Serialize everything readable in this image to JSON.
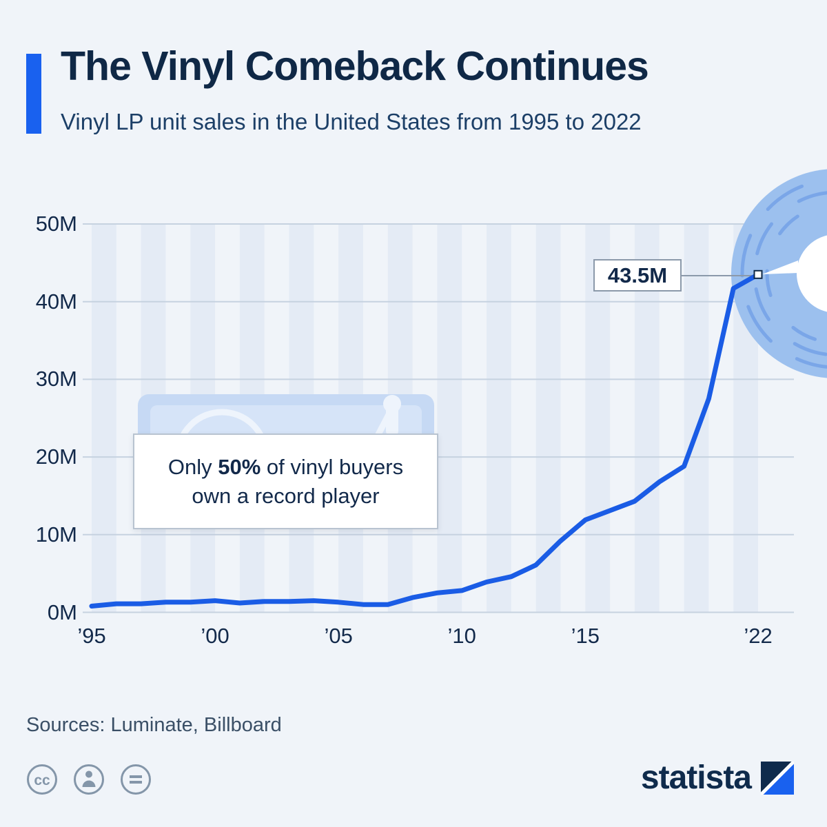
{
  "header": {
    "title": "The Vinyl Comeback Continues",
    "subtitle": "Vinyl LP unit sales in the United States from 1995 to 2022"
  },
  "chart_data": {
    "type": "line",
    "title": "Vinyl LP unit sales in the United States from 1995 to 2022",
    "series_name": "Vinyl LP unit sales (million units)",
    "x": [
      1995,
      1996,
      1997,
      1998,
      1999,
      2000,
      2001,
      2002,
      2003,
      2004,
      2005,
      2006,
      2007,
      2008,
      2009,
      2010,
      2011,
      2012,
      2013,
      2014,
      2015,
      2016,
      2017,
      2018,
      2019,
      2020,
      2021,
      2022
    ],
    "values": [
      0.8,
      1.1,
      1.1,
      1.3,
      1.3,
      1.5,
      1.2,
      1.4,
      1.4,
      1.5,
      1.3,
      1.0,
      1.0,
      1.9,
      2.5,
      2.8,
      3.9,
      4.6,
      6.1,
      9.2,
      11.9,
      13.1,
      14.3,
      16.8,
      18.8,
      27.5,
      41.7,
      43.5
    ],
    "unit": "M",
    "ylim": [
      0,
      50
    ],
    "grid": true,
    "y_ticks": [
      {
        "label": "0M",
        "value": 0
      },
      {
        "label": "10M",
        "value": 10
      },
      {
        "label": "20M",
        "value": 20
      },
      {
        "label": "30M",
        "value": 30
      },
      {
        "label": "40M",
        "value": 40
      },
      {
        "label": "50M",
        "value": 50
      }
    ],
    "x_ticks": [
      {
        "label": "’95",
        "year": 1995
      },
      {
        "label": "’00",
        "year": 2000
      },
      {
        "label": "’05",
        "year": 2005
      },
      {
        "label": "’10",
        "year": 2010
      },
      {
        "label": "’15",
        "year": 2015
      },
      {
        "label": "’22",
        "year": 2022
      }
    ],
    "end_label": "43.5M"
  },
  "annotation": {
    "prefix": "Only ",
    "highlight": "50%",
    "suffix": " of vinyl buyers",
    "line2": "own a record player"
  },
  "callout": {
    "label": "43.5M"
  },
  "footer": {
    "sources": "Sources: Luminate, Billboard",
    "brand": "statista"
  },
  "icons": {
    "license": [
      "creative-commons-icon",
      "attribution-person-icon",
      "equals-icon"
    ],
    "illustrations": [
      "record-player-illustration",
      "vinyl-record-illustration"
    ]
  },
  "colors": {
    "background": "#f0f4f9",
    "accent": "#1961ef",
    "line": "#1a5ce5",
    "navy": "#0f2846",
    "grid": "#c6d2e0",
    "stripe": "#e4ebf5",
    "record": "#9cc0ee",
    "record_groove": "#7aa6e8",
    "player": "#c6d9f4",
    "player_inner": "#d6e4f8",
    "player_detail": "#eef4fc",
    "connector": "#8b99aa",
    "icon_gray": "#8496a9"
  }
}
